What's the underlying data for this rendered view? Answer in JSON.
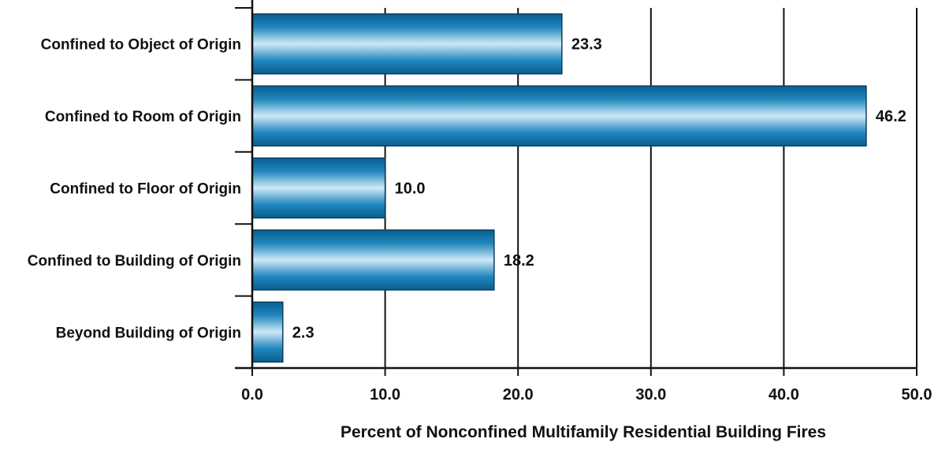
{
  "chart_data": {
    "type": "bar",
    "orientation": "horizontal",
    "categories": [
      "Confined to Object of Origin",
      "Confined to Room of Origin",
      "Confined to Floor of Origin",
      "Confined to Building of Origin",
      "Beyond Building of Origin"
    ],
    "values": [
      23.3,
      46.2,
      10.0,
      18.2,
      2.3
    ],
    "value_labels": [
      "23.3",
      "46.2",
      "10.0",
      "18.2",
      "2.3"
    ],
    "title": "",
    "xlabel": "Percent of Nonconfined Multifamily Residential Building Fires",
    "ylabel": "",
    "xlim": [
      0,
      50
    ],
    "x_ticks": [
      0,
      10,
      20,
      30,
      40,
      50
    ],
    "x_tick_labels": [
      "0.0",
      "10.0",
      "20.0",
      "30.0",
      "40.0",
      "50.0"
    ],
    "grid": "vertical",
    "legend": "none",
    "colors": {
      "bar_dark": "#0a5f8f",
      "bar_mid": "#1f86bd",
      "bar_light": "#cfe9f7",
      "axis": "#111111"
    }
  }
}
